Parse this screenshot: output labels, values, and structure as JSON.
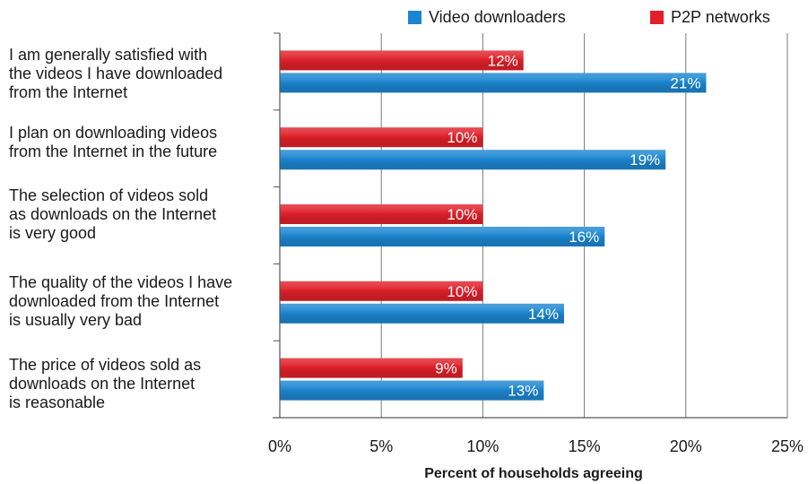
{
  "chart_data": {
    "type": "bar",
    "orientation": "horizontal",
    "categories": [
      "I am generally satisfied with\nthe videos I have downloaded\nfrom the Internet",
      "I plan on downloading videos\nfrom the Internet in the future",
      "The selection of videos sold\nas downloads on the Internet\nis very good",
      "The quality of the videos I have\ndownloaded from the Internet\nis usually very bad",
      "The price of videos sold as\ndownloads on the Internet\nis reasonable"
    ],
    "series": [
      {
        "name": "P2P networks",
        "color": "#e0202a",
        "values": [
          12,
          10,
          10,
          10,
          9
        ],
        "labels": [
          "12%",
          "10%",
          "10%",
          "10%",
          "9%"
        ]
      },
      {
        "name": "Video downloaders",
        "color": "#1c86d0",
        "values": [
          21,
          19,
          16,
          14,
          13
        ],
        "labels": [
          "21%",
          "19%",
          "16%",
          "14%",
          "13%"
        ]
      }
    ],
    "legend_order": [
      "Video downloaders",
      "P2P networks"
    ],
    "xlim": [
      0,
      25
    ],
    "xticks": [
      0,
      5,
      10,
      15,
      20,
      25
    ],
    "xtick_labels": [
      "0%",
      "5%",
      "10%",
      "15%",
      "20%",
      "25%"
    ],
    "xlabel": "Percent of households agreeing",
    "grid": true,
    "legend_position": "top-right"
  }
}
